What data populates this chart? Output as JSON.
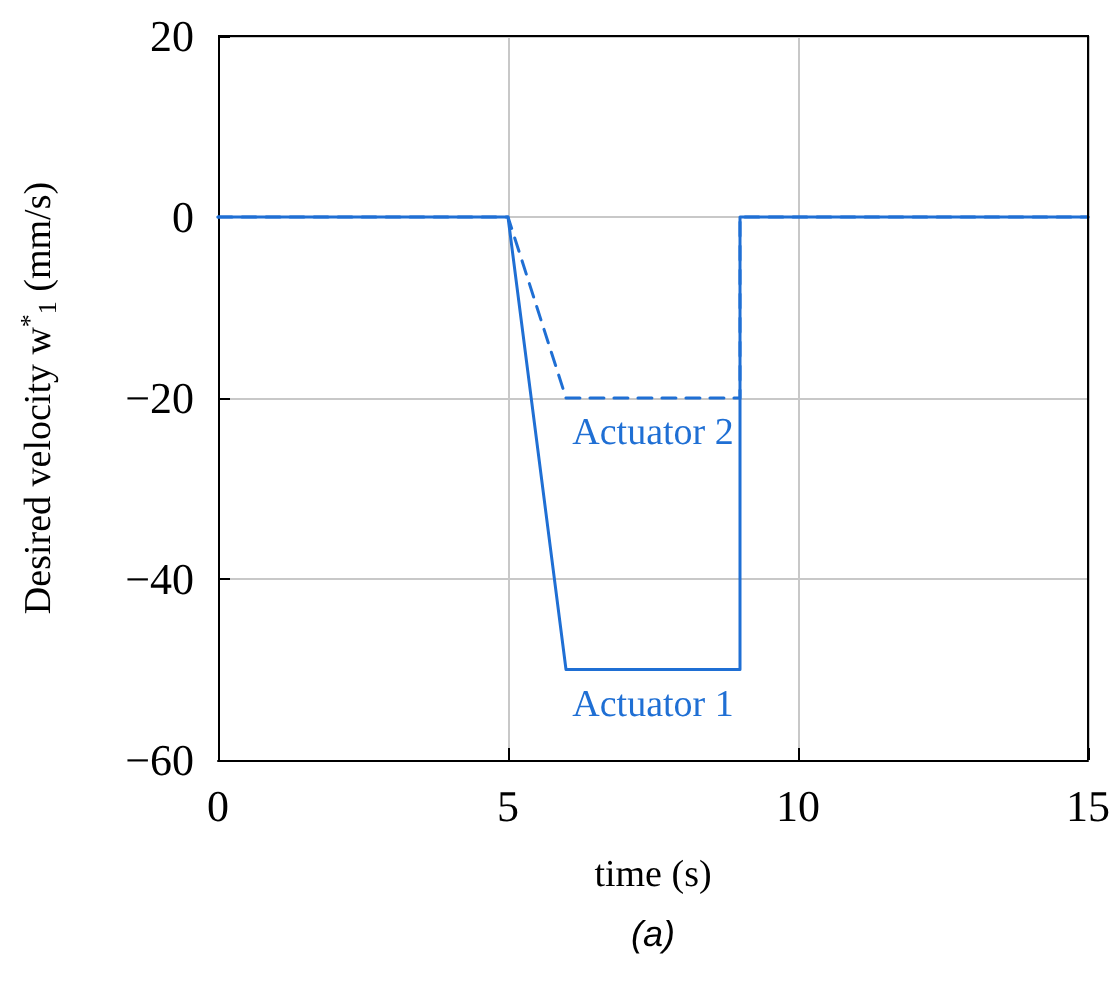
{
  "chart_data": {
    "type": "line",
    "xlabel": "time (s)",
    "ylabel": "Desired velocity w$^{*}$$_{1}$ (mm/s)",
    "x": [
      0,
      5,
      6,
      9,
      9,
      15
    ],
    "series": [
      {
        "name": "Actuator 1",
        "color": "#1f6fd4",
        "line_style": "solid",
        "values": [
          0,
          0,
          -50,
          -50,
          0,
          0
        ]
      },
      {
        "name": "Actuator 2",
        "color": "#1f6fd4",
        "line_style": "dashed",
        "values": [
          0,
          0,
          -20,
          -20,
          0,
          0
        ]
      }
    ],
    "xlim": [
      0,
      15
    ],
    "xticks": [
      0,
      5,
      10,
      15
    ],
    "ylim": [
      -60,
      20
    ],
    "yticks": [
      -60,
      -40,
      -20,
      0,
      20
    ],
    "grid": true,
    "marker": "none",
    "annotations": [
      "(a)"
    ]
  }
}
